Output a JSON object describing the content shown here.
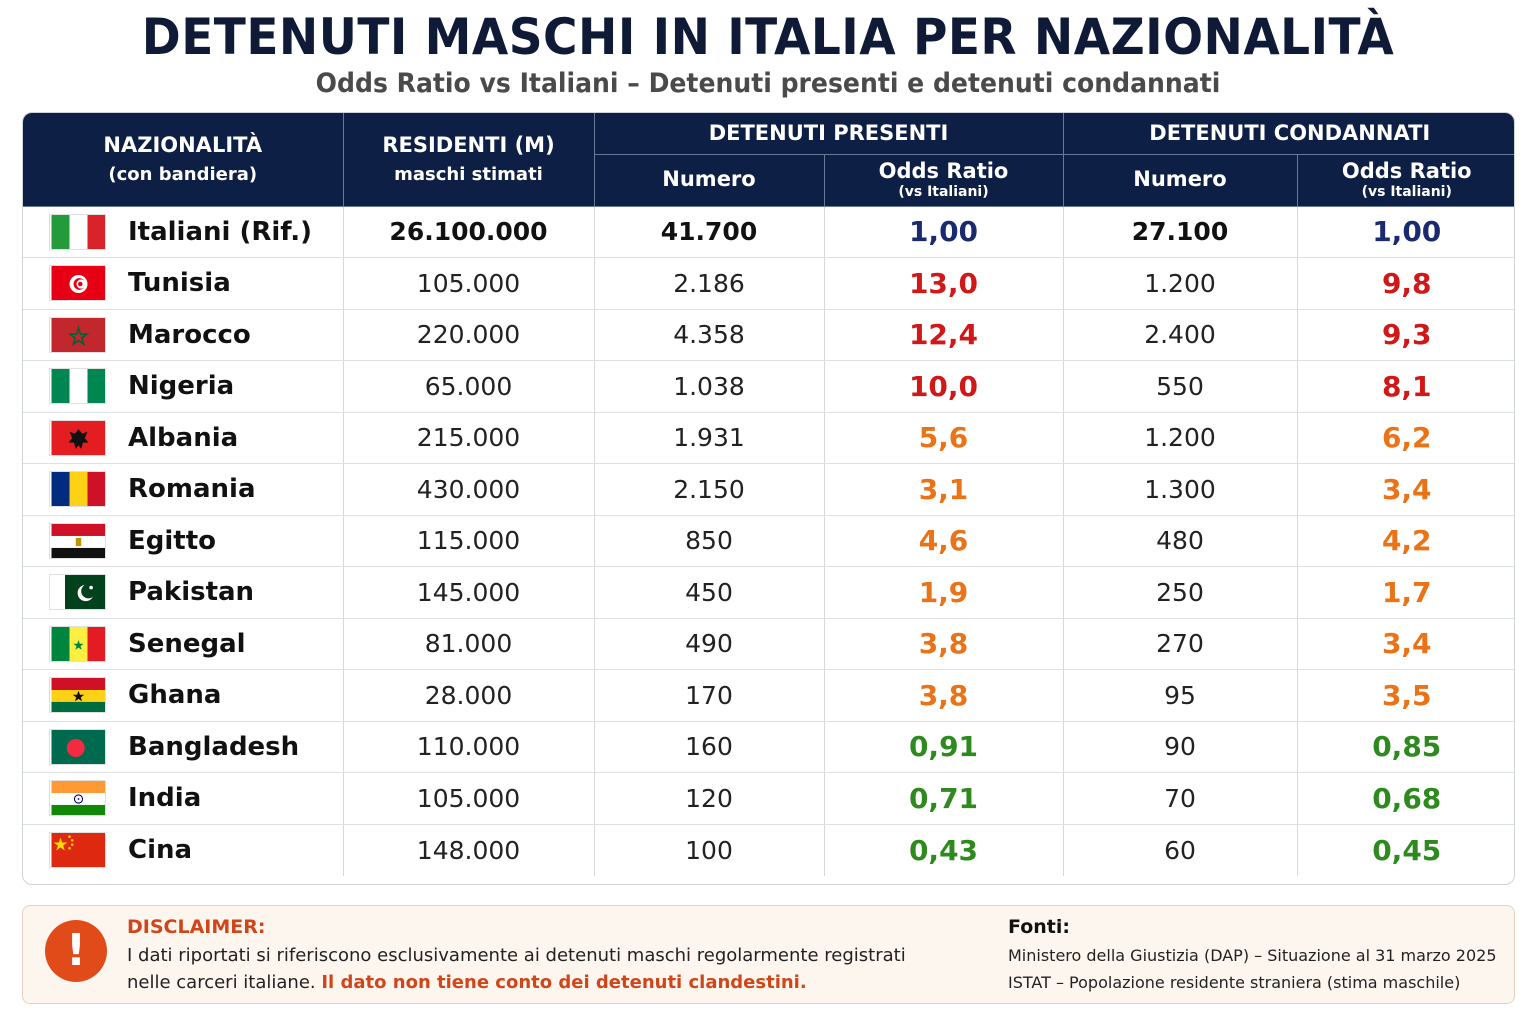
{
  "title": "DETENUTI MASCHI IN ITALIA PER NAZIONALITÀ",
  "subtitle": "Odds Ratio vs Italiani – Detenuti presenti e detenuti condannati",
  "colors": {
    "header_bg": "#0e1f45",
    "reference": "#1a2a6e",
    "high": "#d01818",
    "medium": "#ea7317",
    "low": "#2e8a1e",
    "disclaimer_accent": "#d0461a"
  },
  "chart_data": {
    "type": "table",
    "headers": {
      "nationality": "NAZIONALITÀ",
      "nationality_sub": "(con bandiera)",
      "residents": "RESIDENTI (M)",
      "residents_sub": "maschi stimati",
      "group_present": "DETENUTI PRESENTI",
      "group_convicted": "DETENUTI CONDANNATI",
      "numero": "Numero",
      "odds_ratio": "Odds Ratio",
      "odds_ratio_sub": "(vs Italiani)"
    },
    "rows": [
      {
        "nationality": "Italiani (Rif.)",
        "flag": "italy-flag",
        "residents": "26.100.000",
        "present": "41.700",
        "present_or": "1,00",
        "convicted": "27.100",
        "convicted_or": "1,00",
        "level": "ref"
      },
      {
        "nationality": "Tunisia",
        "flag": "tunisia-flag",
        "residents": "105.000",
        "present": "2.186",
        "present_or": "13,0",
        "convicted": "1.200",
        "convicted_or": "9,8",
        "level": "high"
      },
      {
        "nationality": "Marocco",
        "flag": "morocco-flag",
        "residents": "220.000",
        "present": "4.358",
        "present_or": "12,4",
        "convicted": "2.400",
        "convicted_or": "9,3",
        "level": "high"
      },
      {
        "nationality": "Nigeria",
        "flag": "nigeria-flag",
        "residents": "65.000",
        "present": "1.038",
        "present_or": "10,0",
        "convicted": "550",
        "convicted_or": "8,1",
        "level": "high"
      },
      {
        "nationality": "Albania",
        "flag": "albania-flag",
        "residents": "215.000",
        "present": "1.931",
        "present_or": "5,6",
        "convicted": "1.200",
        "convicted_or": "6,2",
        "level": "mid"
      },
      {
        "nationality": "Romania",
        "flag": "romania-flag",
        "residents": "430.000",
        "present": "2.150",
        "present_or": "3,1",
        "convicted": "1.300",
        "convicted_or": "3,4",
        "level": "mid"
      },
      {
        "nationality": "Egitto",
        "flag": "egypt-flag",
        "residents": "115.000",
        "present": "850",
        "present_or": "4,6",
        "convicted": "480",
        "convicted_or": "4,2",
        "level": "mid"
      },
      {
        "nationality": "Pakistan",
        "flag": "pakistan-flag",
        "residents": "145.000",
        "present": "450",
        "present_or": "1,9",
        "convicted": "250",
        "convicted_or": "1,7",
        "level": "mid"
      },
      {
        "nationality": "Senegal",
        "flag": "senegal-flag",
        "residents": "81.000",
        "present": "490",
        "present_or": "3,8",
        "convicted": "270",
        "convicted_or": "3,4",
        "level": "mid"
      },
      {
        "nationality": "Ghana",
        "flag": "ghana-flag",
        "residents": "28.000",
        "present": "170",
        "present_or": "3,8",
        "convicted": "95",
        "convicted_or": "3,5",
        "level": "mid"
      },
      {
        "nationality": "Bangladesh",
        "flag": "bangladesh-flag",
        "residents": "110.000",
        "present": "160",
        "present_or": "0,91",
        "convicted": "90",
        "convicted_or": "0,85",
        "level": "low"
      },
      {
        "nationality": "India",
        "flag": "india-flag",
        "residents": "105.000",
        "present": "120",
        "present_or": "0,71",
        "convicted": "70",
        "convicted_or": "0,68",
        "level": "low"
      },
      {
        "nationality": "Cina",
        "flag": "china-flag",
        "residents": "148.000",
        "present": "100",
        "present_or": "0,43",
        "convicted": "60",
        "convicted_or": "0,45",
        "level": "low"
      }
    ]
  },
  "disclaimer": {
    "icon": "warning-icon",
    "title": "DISCLAIMER:",
    "text": "I dati riportati si riferiscono esclusivamente ai detenuti maschi regolarmente registrati nelle carceri italiane. ",
    "highlight": "Il dato non tiene conto dei detenuti clandestini."
  },
  "sources": {
    "title": "Fonti:",
    "lines": [
      "Ministero della Giustizia (DAP) – Situazione al 31 marzo 2025",
      "ISTAT – Popolazione residente straniera (stima maschile)"
    ]
  }
}
